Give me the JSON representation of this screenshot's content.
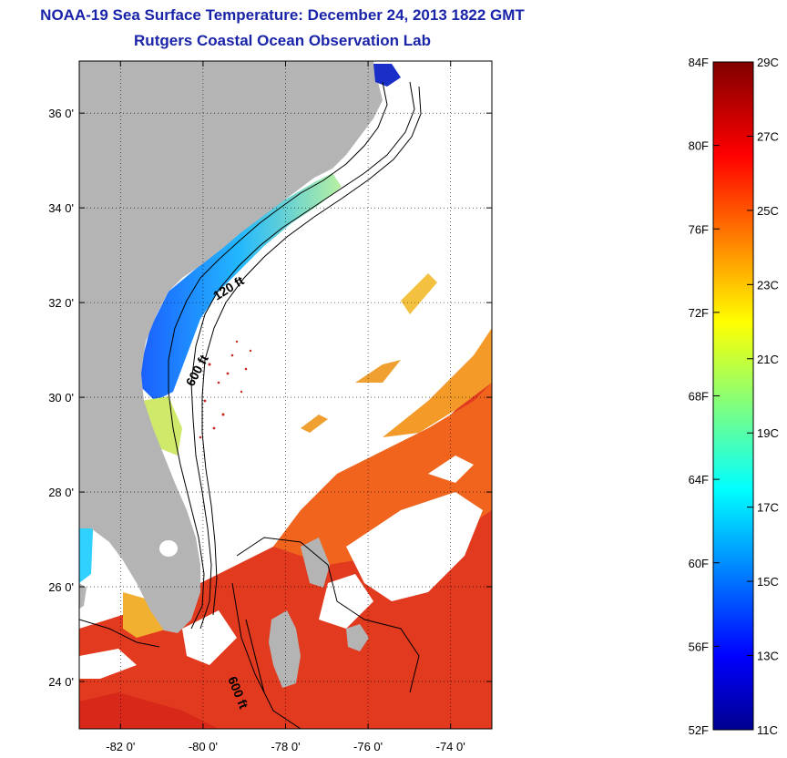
{
  "header": {
    "title": "NOAA-19 Sea Surface Temperature:  December 24, 2013 1822 GMT",
    "subtitle": "Rutgers Coastal Ocean Observation Lab"
  },
  "map": {
    "lat_range": [
      23,
      37.1
    ],
    "lon_range": [
      -83,
      -73
    ],
    "lat_ticks": [
      {
        "value": 24,
        "label": "24 0'"
      },
      {
        "value": 26,
        "label": "26 0'"
      },
      {
        "value": 28,
        "label": "28 0'"
      },
      {
        "value": 30,
        "label": "30 0'"
      },
      {
        "value": 32,
        "label": "32 0'"
      },
      {
        "value": 34,
        "label": "34 0'"
      },
      {
        "value": 36,
        "label": "36 0'"
      }
    ],
    "lon_ticks": [
      {
        "value": -82,
        "label": "-82 0'"
      },
      {
        "value": -80,
        "label": "-80 0'"
      },
      {
        "value": -78,
        "label": "-78 0'"
      },
      {
        "value": -76,
        "label": "-76 0'"
      },
      {
        "value": -74,
        "label": "-74 0'"
      }
    ],
    "contour_labels": {
      "north_120": "120 ft",
      "north_600": "600 ft",
      "south_600": "600 ft"
    },
    "colors": {
      "land": "#b4b4b4",
      "no_data": "#ffffff",
      "grid": "#000000"
    }
  },
  "colorbar": {
    "range_c": [
      11,
      29
    ],
    "range_f": [
      52,
      84
    ],
    "fahrenheit_ticks": [
      "84F",
      "80F",
      "76F",
      "72F",
      "68F",
      "64F",
      "60F",
      "56F",
      "52F"
    ],
    "celsius_ticks": [
      "29C",
      "27C",
      "25C",
      "23C",
      "21C",
      "19C",
      "17C",
      "15C",
      "13C",
      "11C"
    ],
    "colormap": "jet"
  }
}
